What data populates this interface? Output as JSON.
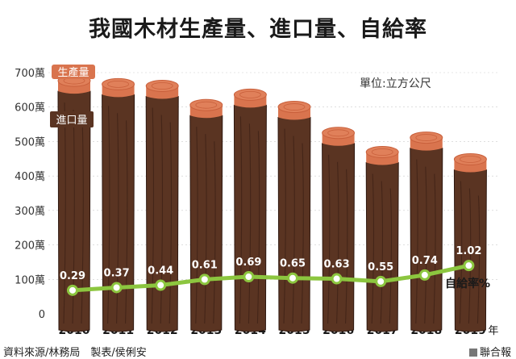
{
  "title": "我國木材生產量、進口量、自給率",
  "source": "資料來源/林務局　製表/侯俐安",
  "publisher": "聯合報",
  "colors": {
    "log": "#5a3422",
    "log_dark": "#3f2216",
    "log_line": "#2e1810",
    "production_top": "#e0805a",
    "production_face": "#d9744e",
    "ring": "#c9603c",
    "ratio_line": "#8cc63f",
    "ratio_point": "#8cc63f",
    "ratio_point_fill": "#ffffff",
    "label_text": "#ffffff",
    "grid": "#cccccc"
  },
  "chart_data": {
    "type": "bar",
    "title": "我國木材生產量、進口量、自給率",
    "unit_label": "單位:立方公尺",
    "x_unit": "年",
    "categories": [
      "2010",
      "2011",
      "2012",
      "2013",
      "2014",
      "2015",
      "2016",
      "2017",
      "2018",
      "2019"
    ],
    "ylim": [
      0,
      7000000
    ],
    "ytick_labels": [
      "0",
      "100萬",
      "200萬",
      "300萬",
      "400萬",
      "500萬",
      "600萬",
      "700萬"
    ],
    "ytick_values": [
      0,
      1000000,
      2000000,
      3000000,
      4000000,
      5000000,
      6000000,
      7000000
    ],
    "series": [
      {
        "name": "進口量",
        "values": [
          6550000,
          6450000,
          6400000,
          5850000,
          6150000,
          5800000,
          5050000,
          4500000,
          4900000,
          4250000
        ]
      },
      {
        "name": "生產量",
        "values": [
          50000,
          50000,
          50000,
          45000,
          45000,
          40000,
          35000,
          30000,
          50000,
          70000
        ]
      },
      {
        "name": "自給率%",
        "values": [
          0.29,
          0.37,
          0.44,
          0.61,
          0.69,
          0.65,
          0.63,
          0.55,
          0.74,
          1.02
        ]
      }
    ],
    "ratio_labels": [
      "0.29",
      "0.37",
      "0.44",
      "0.61",
      "0.69",
      "0.65",
      "0.63",
      "0.55",
      "0.74",
      "1.02"
    ],
    "legend": [
      "生產量",
      "進口量",
      "自給率%"
    ]
  }
}
